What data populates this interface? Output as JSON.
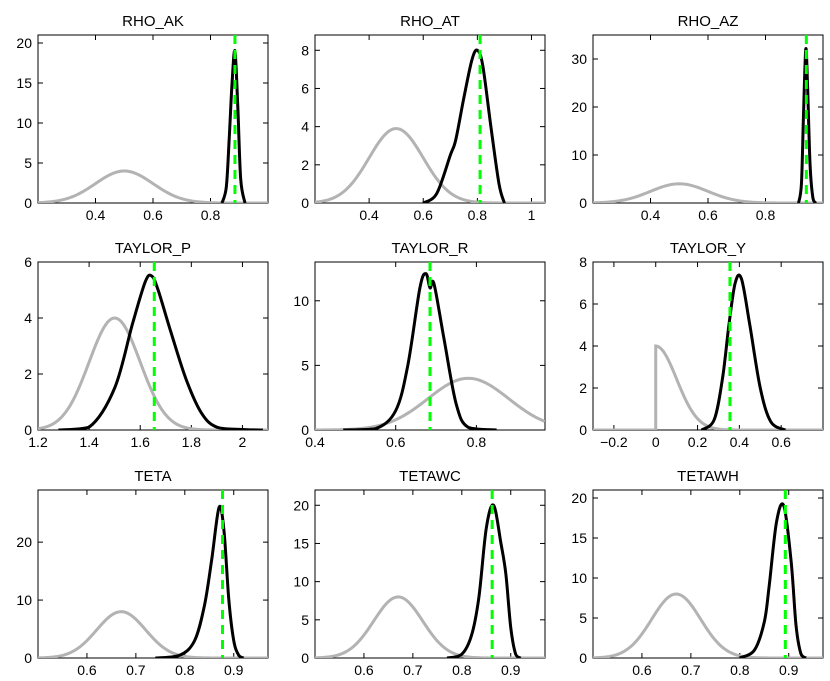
{
  "chart_data": [
    {
      "type": "line",
      "title": "RHO_AK",
      "xlim": [
        0.2,
        1.0
      ],
      "ylim": [
        0,
        21
      ],
      "xticks": [
        0.4,
        0.6,
        0.8
      ],
      "xtick_labels": [
        "0.4",
        "0.6",
        "0.8"
      ],
      "yticks": [
        0,
        5,
        10,
        15,
        20
      ],
      "ytick_labels": [
        "0",
        "5",
        "10",
        "15",
        "20"
      ],
      "prior_line": {
        "shape": "normal",
        "center": 0.5,
        "spread": 0.1,
        "peak": 4.0
      },
      "posterior_line": {
        "x": [
          0.84,
          0.855,
          0.865,
          0.875,
          0.885,
          0.895,
          0.905,
          0.92
        ],
        "y": [
          0,
          2,
          8,
          15,
          19,
          12,
          3,
          0
        ]
      },
      "mode_marker": 0.885,
      "series": [
        {
          "color": "#b3b3b3"
        },
        {
          "color": "#000000"
        },
        {
          "color": "#00ff00"
        }
      ]
    },
    {
      "type": "line",
      "title": "RHO_AT",
      "xlim": [
        0.2,
        1.05
      ],
      "ylim": [
        0,
        8.8
      ],
      "xticks": [
        0.4,
        0.6,
        0.8,
        1
      ],
      "xtick_labels": [
        "0.4",
        "0.6",
        "0.8",
        "1"
      ],
      "yticks": [
        0,
        2,
        4,
        6,
        8
      ],
      "ytick_labels": [
        "0",
        "2",
        "4",
        "6",
        "8"
      ],
      "prior_line": {
        "shape": "normal",
        "center": 0.5,
        "spread": 0.1,
        "peak": 3.9
      },
      "posterior_line": {
        "x": [
          0.6,
          0.65,
          0.7,
          0.72,
          0.75,
          0.78,
          0.8,
          0.82,
          0.85,
          0.88,
          0.9
        ],
        "y": [
          0,
          0.5,
          2.5,
          3.3,
          5.5,
          7.5,
          8.0,
          7.2,
          4,
          1,
          0
        ]
      },
      "mode_marker": 0.81,
      "series": [
        {
          "color": "#b3b3b3"
        },
        {
          "color": "#000000"
        },
        {
          "color": "#00ff00"
        }
      ]
    },
    {
      "type": "line",
      "title": "RHO_AZ",
      "xlim": [
        0.2,
        1.0
      ],
      "ylim": [
        0,
        35
      ],
      "xticks": [
        0.4,
        0.6,
        0.8
      ],
      "xtick_labels": [
        "0.4",
        "0.6",
        "0.8"
      ],
      "yticks": [
        0,
        10,
        20,
        30
      ],
      "ytick_labels": [
        "0",
        "10",
        "20",
        "30"
      ],
      "prior_line": {
        "shape": "normal",
        "center": 0.5,
        "spread": 0.1,
        "peak": 4.0
      },
      "posterior_line": {
        "x": [
          0.915,
          0.925,
          0.932,
          0.94,
          0.946,
          0.955,
          0.965,
          0.975
        ],
        "y": [
          0,
          4,
          18,
          32,
          25,
          8,
          1,
          0
        ]
      },
      "mode_marker": 0.942,
      "series": [
        {
          "color": "#b3b3b3"
        },
        {
          "color": "#000000"
        },
        {
          "color": "#00ff00"
        }
      ]
    },
    {
      "type": "line",
      "title": "TAYLOR_P",
      "xlim": [
        1.2,
        2.1
      ],
      "ylim": [
        0,
        6
      ],
      "xticks": [
        1.2,
        1.4,
        1.6,
        1.8,
        2
      ],
      "xtick_labels": [
        "1.2",
        "1.4",
        "1.6",
        "1.8",
        "2"
      ],
      "yticks": [
        0,
        2,
        4,
        6
      ],
      "ytick_labels": [
        "0",
        "2",
        "4",
        "6"
      ],
      "prior_line": {
        "shape": "normal",
        "center": 1.5,
        "spread": 0.1,
        "peak": 4.0
      },
      "posterior_line": {
        "x": [
          1.28,
          1.4,
          1.5,
          1.57,
          1.62,
          1.645,
          1.67,
          1.72,
          1.78,
          1.84,
          1.9,
          2.0,
          2.08
        ],
        "y": [
          0,
          0.1,
          1.5,
          3.8,
          5.3,
          5.5,
          5.0,
          3.5,
          1.8,
          0.6,
          0.1,
          0.02,
          0
        ]
      },
      "mode_marker": 1.655,
      "series": [
        {
          "color": "#b3b3b3"
        },
        {
          "color": "#000000"
        },
        {
          "color": "#00ff00"
        }
      ]
    },
    {
      "type": "line",
      "title": "TAYLOR_R",
      "xlim": [
        0.4,
        0.97
      ],
      "ylim": [
        0,
        13
      ],
      "xticks": [
        0.4,
        0.6,
        0.8
      ],
      "xtick_labels": [
        "0.4",
        "0.6",
        "0.8"
      ],
      "yticks": [
        0,
        5,
        10
      ],
      "ytick_labels": [
        "0",
        "5",
        "10"
      ],
      "prior_line": {
        "shape": "normal",
        "center": 0.78,
        "spread": 0.1,
        "peak": 4.0
      },
      "posterior_line": {
        "x": [
          0.47,
          0.55,
          0.6,
          0.63,
          0.66,
          0.675,
          0.685,
          0.695,
          0.72,
          0.75,
          0.78,
          0.85
        ],
        "y": [
          0,
          0.1,
          1.5,
          5,
          11,
          12.1,
          11,
          11.3,
          7,
          2,
          0.2,
          0
        ]
      },
      "mode_marker": 0.685,
      "series": [
        {
          "color": "#b3b3b3"
        },
        {
          "color": "#000000"
        },
        {
          "color": "#00ff00"
        }
      ]
    },
    {
      "type": "line",
      "title": "TAYLOR_Y",
      "xlim": [
        -0.3,
        0.8
      ],
      "ylim": [
        0,
        8
      ],
      "xticks": [
        -0.2,
        0,
        0.2,
        0.4,
        0.6
      ],
      "xtick_labels": [
        "−0.2",
        "0",
        "0.2",
        "0.4",
        "0.6"
      ],
      "yticks": [
        0,
        2,
        4,
        6,
        8
      ],
      "ytick_labels": [
        "0",
        "2",
        "4",
        "6",
        "8"
      ],
      "prior_line": {
        "shape": "halfnormal",
        "center": 0,
        "spread": 0.1,
        "peak": 4.0
      },
      "posterior_line": {
        "x": [
          0.22,
          0.28,
          0.32,
          0.35,
          0.38,
          0.41,
          0.45,
          0.5,
          0.55,
          0.62
        ],
        "y": [
          0,
          0.5,
          2.5,
          5,
          7,
          7.2,
          5,
          2,
          0.4,
          0
        ]
      },
      "mode_marker": 0.355,
      "series": [
        {
          "color": "#b3b3b3"
        },
        {
          "color": "#000000"
        },
        {
          "color": "#00ff00"
        }
      ]
    },
    {
      "type": "line",
      "title": "TETA",
      "xlim": [
        0.5,
        0.97
      ],
      "ylim": [
        0,
        29
      ],
      "xticks": [
        0.6,
        0.7,
        0.8,
        0.9
      ],
      "xtick_labels": [
        "0.6",
        "0.7",
        "0.8",
        "0.9"
      ],
      "yticks": [
        0,
        10,
        20
      ],
      "ytick_labels": [
        "0",
        "10",
        "20"
      ],
      "prior_line": {
        "shape": "normal",
        "center": 0.67,
        "spread": 0.05,
        "peak": 8.0
      },
      "posterior_line": {
        "x": [
          0.74,
          0.79,
          0.82,
          0.84,
          0.855,
          0.87,
          0.88,
          0.89,
          0.9,
          0.91,
          0.92
        ],
        "y": [
          0,
          0.5,
          3,
          9,
          17,
          26,
          22,
          10,
          3,
          0.5,
          0
        ]
      },
      "mode_marker": 0.877,
      "series": [
        {
          "color": "#b3b3b3"
        },
        {
          "color": "#000000"
        },
        {
          "color": "#00ff00"
        }
      ]
    },
    {
      "type": "line",
      "title": "TETAWC",
      "xlim": [
        0.5,
        0.97
      ],
      "ylim": [
        0,
        22
      ],
      "xticks": [
        0.6,
        0.7,
        0.8,
        0.9
      ],
      "xtick_labels": [
        "0.6",
        "0.7",
        "0.8",
        "0.9"
      ],
      "yticks": [
        0,
        5,
        10,
        15,
        20
      ],
      "ytick_labels": [
        "0",
        "5",
        "10",
        "15",
        "20"
      ],
      "prior_line": {
        "shape": "normal",
        "center": 0.67,
        "spread": 0.05,
        "peak": 8.0
      },
      "posterior_line": {
        "x": [
          0.77,
          0.8,
          0.82,
          0.835,
          0.85,
          0.865,
          0.88,
          0.89,
          0.9,
          0.91,
          0.92
        ],
        "y": [
          0,
          0.5,
          3,
          8,
          17,
          20,
          15,
          11,
          4,
          0.5,
          0
        ]
      },
      "mode_marker": 0.862,
      "series": [
        {
          "color": "#b3b3b3"
        },
        {
          "color": "#000000"
        },
        {
          "color": "#00ff00"
        }
      ]
    },
    {
      "type": "line",
      "title": "TETAWH",
      "xlim": [
        0.5,
        0.97
      ],
      "ylim": [
        0,
        21
      ],
      "xticks": [
        0.6,
        0.7,
        0.8,
        0.9
      ],
      "xtick_labels": [
        "0.6",
        "0.7",
        "0.8",
        "0.9"
      ],
      "yticks": [
        0,
        5,
        10,
        15,
        20
      ],
      "ytick_labels": [
        "0",
        "5",
        "10",
        "15",
        "20"
      ],
      "prior_line": {
        "shape": "normal",
        "center": 0.67,
        "spread": 0.05,
        "peak": 8.0
      },
      "posterior_line": {
        "x": [
          0.8,
          0.83,
          0.85,
          0.86,
          0.875,
          0.89,
          0.905,
          0.915,
          0.925,
          0.935
        ],
        "y": [
          0,
          1,
          4.5,
          9,
          17,
          19,
          12,
          4,
          0.5,
          0
        ]
      },
      "mode_marker": 0.893,
      "series": [
        {
          "color": "#b3b3b3"
        },
        {
          "color": "#000000"
        },
        {
          "color": "#00ff00"
        }
      ]
    }
  ]
}
